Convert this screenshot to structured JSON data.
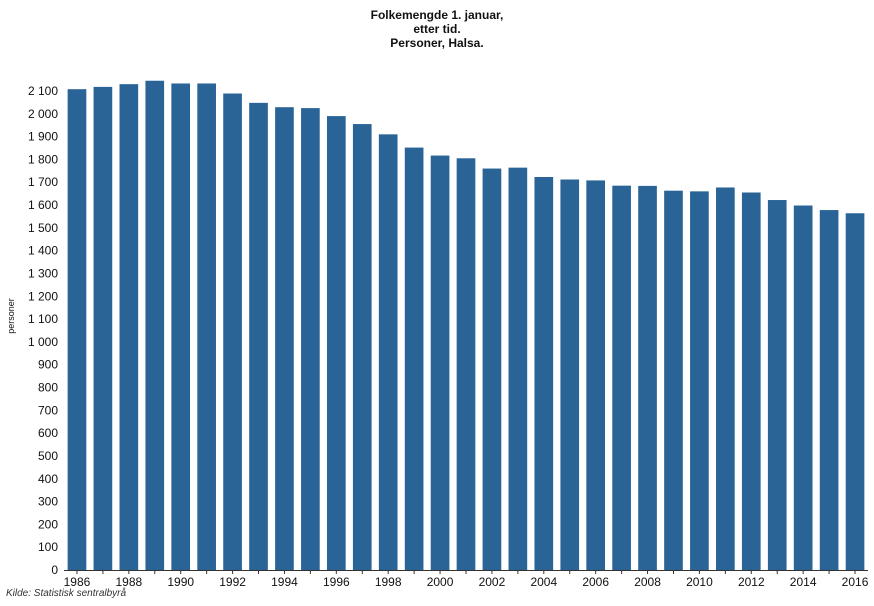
{
  "chart_data": {
    "type": "bar",
    "title_lines": [
      "Folkemengde 1. januar,",
      "etter tid.",
      "Personer, Halsa."
    ],
    "ylabel": "personer",
    "xlabel": "",
    "source": "Kilde: Statistisk sentralbyrå",
    "bar_color": "#2a6496",
    "ylim": [
      0,
      2150
    ],
    "yticks": [
      0,
      100,
      200,
      300,
      400,
      500,
      600,
      700,
      800,
      900,
      1000,
      1100,
      1200,
      1300,
      1400,
      1500,
      1600,
      1700,
      1800,
      1900,
      2000,
      2100
    ],
    "ytick_labels": [
      "0",
      "100",
      "200",
      "300",
      "400",
      "500",
      "600",
      "700",
      "800",
      "900",
      "1 000",
      "1 100",
      "1 200",
      "1 300",
      "1 400",
      "1 500",
      "1 600",
      "1 700",
      "1 800",
      "1 900",
      "2 000",
      "2 100"
    ],
    "categories": [
      "1986",
      "1987",
      "1988",
      "1989",
      "1990",
      "1991",
      "1992",
      "1993",
      "1994",
      "1995",
      "1996",
      "1997",
      "1998",
      "1999",
      "2000",
      "2001",
      "2002",
      "2003",
      "2004",
      "2005",
      "2006",
      "2007",
      "2008",
      "2009",
      "2010",
      "2011",
      "2012",
      "2013",
      "2014",
      "2015",
      "2016"
    ],
    "xtick_labels": [
      "1986",
      "1988",
      "1990",
      "1992",
      "1994",
      "1996",
      "1998",
      "2000",
      "2002",
      "2004",
      "2006",
      "2008",
      "2010",
      "2012",
      "2014",
      "2016"
    ],
    "values": [
      2108,
      2118,
      2130,
      2145,
      2133,
      2133,
      2089,
      2048,
      2029,
      2025,
      1990,
      1955,
      1910,
      1852,
      1817,
      1805,
      1760,
      1764,
      1723,
      1712,
      1708,
      1685,
      1684,
      1663,
      1660,
      1677,
      1655,
      1622,
      1598,
      1578,
      1564
    ],
    "grid": false,
    "legend": "none"
  }
}
